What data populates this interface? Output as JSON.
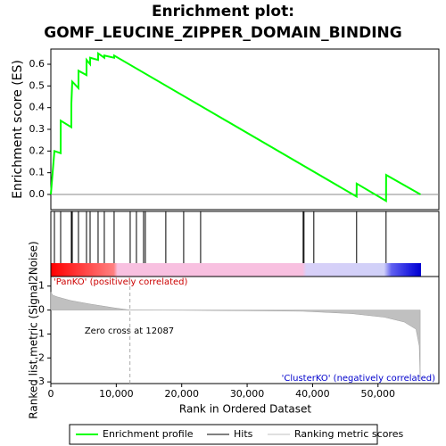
{
  "chart_data": [
    {
      "type": "line",
      "title": "Enrichment plot:",
      "subtitle": "GOMF_LEUCINE_ZIPPER_DOMAIN_BINDING",
      "ylabel": "Enrichment score (ES)",
      "xlim": [
        0,
        59300
      ],
      "ylim": [
        -0.07,
        0.67
      ],
      "yticks": [
        {
          "value": 0,
          "label": "0.0"
        },
        0.1,
        0.2,
        0.3,
        0.4,
        0.5,
        0.6
      ],
      "series": [
        {
          "name": "Enrichment profile",
          "color": "#00ff00",
          "x": [
            0,
            545,
            1500,
            1510,
            3130,
            3140,
            3270,
            4220,
            4230,
            5450,
            5460,
            6000,
            6010,
            7220,
            7230,
            8170,
            8180,
            9670,
            9680,
            46730,
            46740,
            51230,
            51240,
            56500
          ],
          "values": [
            0,
            0.2,
            0.19,
            0.34,
            0.31,
            0.42,
            0.52,
            0.49,
            0.57,
            0.55,
            0.62,
            0.6,
            0.63,
            0.62,
            0.65,
            0.63,
            0.64,
            0.63,
            0.64,
            -0.01,
            0.05,
            -0.03,
            0.09,
            0.0
          ]
        }
      ]
    },
    {
      "type": "hits",
      "series": [
        {
          "name": "Hits",
          "color": "#000000",
          "x": [
            545,
            1500,
            3130,
            3270,
            4220,
            5450,
            6000,
            7220,
            8170,
            9670,
            12125,
            13080,
            14170,
            14440,
            17570,
            20300,
            22890,
            38560,
            38690,
            40190,
            46730,
            51230
          ]
        }
      ]
    },
    {
      "type": "area",
      "ylabel": "Ranked list metric (Signal2Noise)",
      "xlabel": "Rank in Ordered Dataset",
      "xlim": [
        0,
        59300
      ],
      "ylim": [
        -3.07,
        1.4
      ],
      "xticks": [
        0,
        {
          "value": 10000,
          "label": "10,000"
        },
        {
          "value": 20000,
          "label": "20,000"
        },
        {
          "value": 30000,
          "label": "30,000"
        },
        {
          "value": 40000,
          "label": "40,000"
        },
        {
          "value": 50000,
          "label": "50,000"
        }
      ],
      "yticks": [
        1,
        0,
        -1,
        -2,
        -3
      ],
      "zero_cross": 12087,
      "annotation": "Zero cross at 12087",
      "positive_label": "'PanKO' (positively correlated)",
      "negative_label": "'ClusterKO' (negatively correlated)",
      "series": [
        {
          "name": "Ranking metric scores",
          "color": "#c0c0c0",
          "x": [
            0,
            300,
            1000,
            3000,
            6000,
            9500,
            12087,
            20000,
            30000,
            38500,
            46000,
            51000,
            54000,
            55800,
            56300,
            56450
          ],
          "values": [
            0.75,
            0.62,
            0.55,
            0.4,
            0.25,
            0.1,
            0,
            -0.01,
            -0.03,
            -0.05,
            -0.15,
            -0.3,
            -0.5,
            -0.8,
            -1.5,
            -2.9
          ]
        }
      ]
    }
  ]
}
